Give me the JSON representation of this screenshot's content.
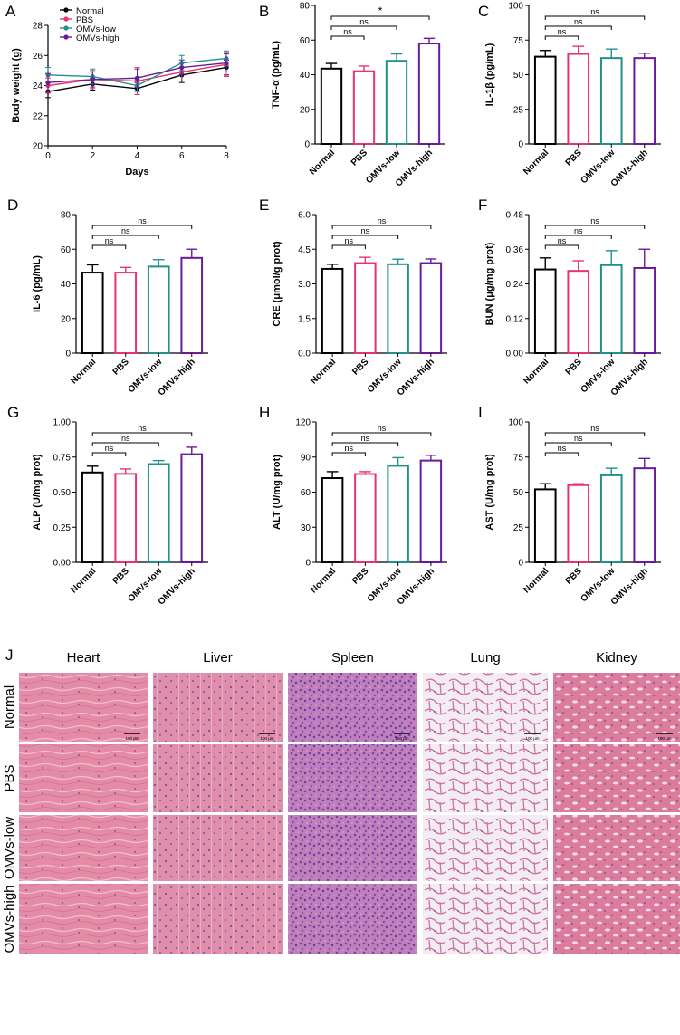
{
  "figure": {
    "panel_J_letter": "J",
    "histology": {
      "columns": [
        "Heart",
        "Liver",
        "Spleen",
        "Lung",
        "Kidney"
      ],
      "rows": [
        "Normal",
        "PBS",
        "OMVs-low",
        "OMVs-high"
      ],
      "scale_bar_label": "100 μm",
      "tissue_colors": {
        "Heart": "#e38aa7",
        "Liver": "#dd8aa8",
        "Spleen": "#b77bbf",
        "Lung": "#ecd8e6",
        "Kidney": "#df7f9f"
      }
    }
  },
  "chart_data": [
    {
      "panel": "A",
      "type": "line",
      "xlabel": "Days",
      "ylabel": "Body weight (g)",
      "x": [
        0,
        2,
        4,
        6,
        8
      ],
      "xticks": [
        0,
        2,
        4,
        6,
        8
      ],
      "xlim": [
        0,
        8
      ],
      "ylim": [
        20,
        28
      ],
      "yticks": [
        20,
        22,
        24,
        26,
        28
      ],
      "legend_position": "top-left",
      "series": [
        {
          "name": "Normal",
          "color": "#000000",
          "values": [
            23.6,
            24.1,
            23.8,
            24.7,
            25.2
          ],
          "err": [
            0.4,
            0.4,
            0.4,
            0.5,
            0.5
          ]
        },
        {
          "name": "PBS",
          "color": "#e8336f",
          "values": [
            24.0,
            24.4,
            24.3,
            24.9,
            25.4
          ],
          "err": [
            0.5,
            0.6,
            0.9,
            0.6,
            0.8
          ]
        },
        {
          "name": "OMVs-low",
          "color": "#21918c",
          "values": [
            24.7,
            24.6,
            24.0,
            25.5,
            25.8
          ],
          "err": [
            0.5,
            0.5,
            0.4,
            0.5,
            0.5
          ]
        },
        {
          "name": "OMVs-high",
          "color": "#6a1b9a",
          "values": [
            24.2,
            24.4,
            24.5,
            25.2,
            25.5
          ],
          "err": [
            0.6,
            0.5,
            0.6,
            0.5,
            0.6
          ]
        }
      ]
    },
    {
      "panel": "B",
      "type": "bar",
      "ylabel": "TNF-α (pg/mL)",
      "categories": [
        "Normal",
        "PBS",
        "OMVs-low",
        "OMVs-high"
      ],
      "colors": [
        "#000000",
        "#e8336f",
        "#21918c",
        "#6a1b9a"
      ],
      "values": [
        43.5,
        42.0,
        48.0,
        58.0
      ],
      "err": [
        3.0,
        3.0,
        4.0,
        3.0
      ],
      "ylim": [
        0,
        80
      ],
      "yticks": [
        "0",
        "20",
        "40",
        "60",
        "80"
      ],
      "significance": [
        {
          "from": 0,
          "to": 1,
          "label": "ns"
        },
        {
          "from": 0,
          "to": 2,
          "label": "ns"
        },
        {
          "from": 0,
          "to": 3,
          "label": "*"
        }
      ]
    },
    {
      "panel": "C",
      "type": "bar",
      "ylabel": "IL-1β (pg/mL)",
      "categories": [
        "Normal",
        "PBS",
        "OMVs-low",
        "OMVs-high"
      ],
      "colors": [
        "#000000",
        "#e8336f",
        "#21918c",
        "#6a1b9a"
      ],
      "values": [
        63.0,
        65.0,
        62.0,
        62.0
      ],
      "err": [
        4.5,
        5.5,
        6.5,
        3.5
      ],
      "ylim": [
        0,
        100
      ],
      "yticks": [
        "0",
        "25",
        "50",
        "75",
        "100"
      ],
      "significance": [
        {
          "from": 0,
          "to": 1,
          "label": "ns"
        },
        {
          "from": 0,
          "to": 2,
          "label": "ns"
        },
        {
          "from": 0,
          "to": 3,
          "label": "ns"
        }
      ]
    },
    {
      "panel": "D",
      "type": "bar",
      "ylabel": "IL-6 (pg/mL)",
      "categories": [
        "Normal",
        "PBS",
        "OMVs-low",
        "OMVs-high"
      ],
      "colors": [
        "#000000",
        "#e8336f",
        "#21918c",
        "#6a1b9a"
      ],
      "values": [
        46.5,
        46.5,
        50.0,
        55.0
      ],
      "err": [
        4.5,
        3.0,
        4.0,
        5.0
      ],
      "ylim": [
        0,
        80
      ],
      "yticks": [
        "0",
        "20",
        "40",
        "60",
        "80"
      ],
      "significance": [
        {
          "from": 0,
          "to": 1,
          "label": "ns"
        },
        {
          "from": 0,
          "to": 2,
          "label": "ns"
        },
        {
          "from": 0,
          "to": 3,
          "label": "ns"
        }
      ]
    },
    {
      "panel": "E",
      "type": "bar",
      "ylabel": "CRE (μmol/g prot)",
      "categories": [
        "Normal",
        "PBS",
        "OMVs-low",
        "OMVs-high"
      ],
      "colors": [
        "#000000",
        "#e8336f",
        "#21918c",
        "#6a1b9a"
      ],
      "values": [
        3.65,
        3.9,
        3.85,
        3.9
      ],
      "err": [
        0.2,
        0.25,
        0.22,
        0.18
      ],
      "ylim": [
        0,
        6
      ],
      "yticks": [
        "0.0",
        "1.5",
        "3.0",
        "4.5",
        "6.0"
      ],
      "significance": [
        {
          "from": 0,
          "to": 1,
          "label": "ns"
        },
        {
          "from": 0,
          "to": 2,
          "label": "ns"
        },
        {
          "from": 0,
          "to": 3,
          "label": "ns"
        }
      ]
    },
    {
      "panel": "F",
      "type": "bar",
      "ylabel": "BUN (μg/mg prot)",
      "categories": [
        "Normal",
        "PBS",
        "OMVs-low",
        "OMVs-high"
      ],
      "colors": [
        "#000000",
        "#e8336f",
        "#21918c",
        "#6a1b9a"
      ],
      "values": [
        0.29,
        0.285,
        0.305,
        0.295
      ],
      "err": [
        0.04,
        0.035,
        0.05,
        0.065
      ],
      "ylim": [
        0,
        0.48
      ],
      "yticks": [
        "0.00",
        "0.12",
        "0.24",
        "0.36",
        "0.48"
      ],
      "significance": [
        {
          "from": 0,
          "to": 1,
          "label": "ns"
        },
        {
          "from": 0,
          "to": 2,
          "label": "ns"
        },
        {
          "from": 0,
          "to": 3,
          "label": "ns"
        }
      ]
    },
    {
      "panel": "G",
      "type": "bar",
      "ylabel": "ALP (U/mg prot)",
      "categories": [
        "Normal",
        "PBS",
        "OMVs-low",
        "OMVs-high"
      ],
      "colors": [
        "#000000",
        "#e8336f",
        "#21918c",
        "#6a1b9a"
      ],
      "values": [
        0.64,
        0.63,
        0.7,
        0.77
      ],
      "err": [
        0.045,
        0.035,
        0.025,
        0.05
      ],
      "ylim": [
        0,
        1.0
      ],
      "yticks": [
        "0.00",
        "0.25",
        "0.50",
        "0.75",
        "1.00"
      ],
      "significance": [
        {
          "from": 0,
          "to": 1,
          "label": "ns"
        },
        {
          "from": 0,
          "to": 2,
          "label": "ns"
        },
        {
          "from": 0,
          "to": 3,
          "label": "ns"
        }
      ]
    },
    {
      "panel": "H",
      "type": "bar",
      "ylabel": "ALT (U/mg prot)",
      "categories": [
        "Normal",
        "PBS",
        "OMVs-low",
        "OMVs-high"
      ],
      "colors": [
        "#000000",
        "#e8336f",
        "#21918c",
        "#6a1b9a"
      ],
      "values": [
        72.0,
        75.5,
        82.5,
        87.0
      ],
      "err": [
        5.5,
        2.0,
        7.0,
        4.5
      ],
      "ylim": [
        0,
        120
      ],
      "yticks": [
        "0",
        "30",
        "60",
        "90",
        "120"
      ],
      "significance": [
        {
          "from": 0,
          "to": 1,
          "label": "ns"
        },
        {
          "from": 0,
          "to": 2,
          "label": "ns"
        },
        {
          "from": 0,
          "to": 3,
          "label": "ns"
        }
      ]
    },
    {
      "panel": "I",
      "type": "bar",
      "ylabel": "AST (U/mg prot)",
      "categories": [
        "Normal",
        "PBS",
        "OMVs-low",
        "OMVs-high"
      ],
      "colors": [
        "#000000",
        "#e8336f",
        "#21918c",
        "#6a1b9a"
      ],
      "values": [
        52.0,
        55.0,
        62.0,
        67.0
      ],
      "err": [
        4.0,
        1.0,
        5.0,
        7.0
      ],
      "ylim": [
        0,
        100
      ],
      "yticks": [
        "0",
        "25",
        "50",
        "75",
        "100"
      ],
      "significance": [
        {
          "from": 0,
          "to": 1,
          "label": "ns"
        },
        {
          "from": 0,
          "to": 2,
          "label": "ns"
        },
        {
          "from": 0,
          "to": 3,
          "label": "ns"
        }
      ]
    }
  ]
}
